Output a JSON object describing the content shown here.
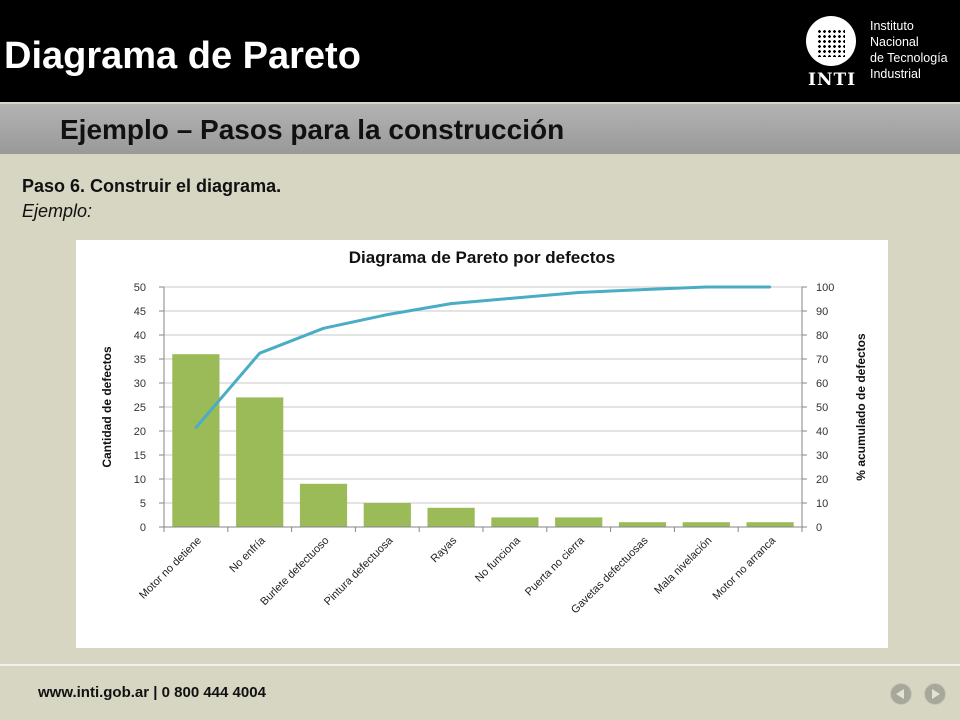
{
  "header": {
    "title": "Diagrama de Pareto",
    "logo": {
      "acronym": "INTI",
      "name_lines": [
        "Instituto",
        "Nacional",
        "de Tecnología",
        "Industrial"
      ]
    }
  },
  "subtitle": "Ejemplo – Pasos para la construcción",
  "step": "Paso 6. Construir el diagrama.",
  "example_label": "Ejemplo:",
  "chart_data": {
    "type": "bar",
    "title": "Diagrama de Pareto por defectos",
    "categories": [
      "Motor no detiene",
      "No enfría",
      "Burlete defectuoso",
      "Pintura defectuosa",
      "Rayas",
      "No funciona",
      "Puerta no cierra",
      "Gavetas defectuosas",
      "Mala nivelación",
      "Motor no arranca"
    ],
    "series": [
      {
        "type": "bar",
        "axis": "left",
        "values": [
          36,
          27,
          9,
          5,
          4,
          2,
          2,
          1,
          1,
          1
        ]
      },
      {
        "type": "line",
        "axis": "right",
        "values": [
          41.4,
          72.4,
          82.8,
          88.5,
          93.1,
          95.4,
          97.7,
          98.9,
          100,
          100
        ]
      }
    ],
    "ylabel": "Cantidad de defectos",
    "y2label": "% acumulado de defectos",
    "ylim": [
      0,
      50
    ],
    "y2lim": [
      0,
      100
    ],
    "yticks": [
      0,
      5,
      10,
      15,
      20,
      25,
      30,
      35,
      40,
      45,
      50
    ],
    "y2ticks": [
      0,
      10,
      20,
      30,
      40,
      50,
      60,
      70,
      80,
      90,
      100
    ],
    "grid": "horizontal",
    "legend": "none",
    "colors": {
      "bar": "#9bbb59",
      "line": "#4bacc6",
      "grid": "#c8c8c8",
      "axis": "#868686"
    }
  },
  "footer": {
    "url": "www.inti.gob.ar | 0 800 444 4004",
    "prev_icon": "arrow-left-icon",
    "next_icon": "arrow-right-icon"
  },
  "colors": {
    "header_bg": "#000000",
    "body_bg": "#d6d6c2",
    "band": "#a6a6a6"
  }
}
